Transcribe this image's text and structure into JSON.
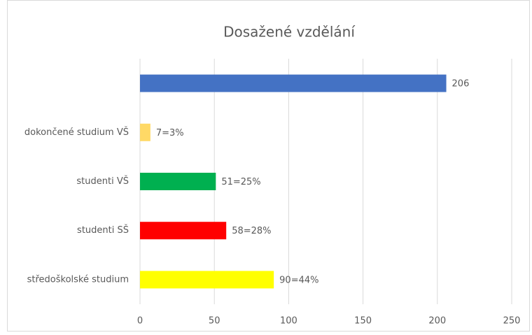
{
  "chart_data": {
    "type": "barh",
    "title": "Dosažené vzdělání",
    "categories": [
      null,
      "dokončené studium VŠ",
      "studenti VŠ",
      "studenti SŠ",
      "středoškolské studium"
    ],
    "values": [
      206,
      7,
      51,
      58,
      90
    ],
    "value_labels": [
      "206",
      "7=3%",
      "51=25%",
      "58=28%",
      "90=44%"
    ],
    "colors": [
      "#4472c4",
      "#ffd966",
      "#00b050",
      "#ff0000",
      "#ffff00"
    ],
    "xlim": [
      0,
      250
    ],
    "xticks": [
      0,
      50,
      100,
      150,
      200,
      250
    ],
    "grid": true
  }
}
